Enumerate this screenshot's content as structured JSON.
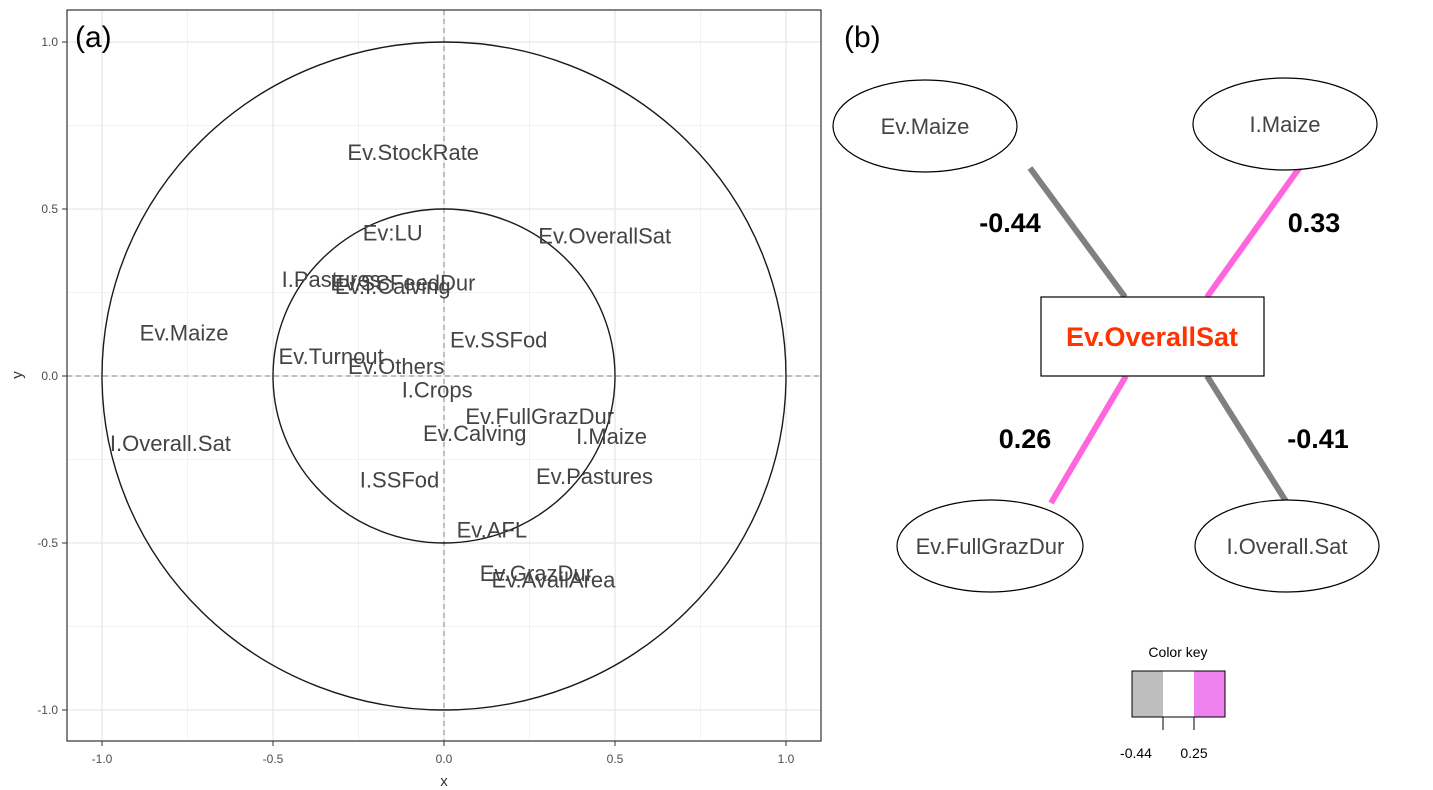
{
  "panel_a": {
    "label": "(a)"
  },
  "panel_b": {
    "label": "(b)"
  },
  "chart_data": [
    {
      "type": "scatter",
      "title": "",
      "xlabel": "x",
      "ylabel": "y",
      "xlim": [
        -1.1,
        1.1
      ],
      "ylim": [
        -1.1,
        1.1
      ],
      "xticks": [
        -1.0,
        -0.5,
        0.0,
        0.5,
        1.0
      ],
      "yticks": [
        -1.0,
        -0.5,
        0.0,
        0.5,
        1.0
      ],
      "xtick_labels": [
        "-1.0",
        "-0.5",
        "0.0",
        "0.5",
        "1.0"
      ],
      "ytick_labels": [
        "-1.0",
        "-0.5",
        "0.0",
        "0.5",
        "1.0"
      ],
      "grid": true,
      "reference_lines": {
        "x": 0,
        "y": 0,
        "style": "dashed"
      },
      "circles": [
        {
          "radius": 1.0
        },
        {
          "radius": 0.5
        }
      ],
      "highlight_color": "#ff3300",
      "text_color": "#444444",
      "points": [
        {
          "label": "Ev.StockRate",
          "x": -0.09,
          "y": 0.67
        },
        {
          "label": "Ev:LU",
          "x": -0.15,
          "y": 0.43
        },
        {
          "label": "Ev.OverallSat",
          "x": 0.47,
          "y": 0.42,
          "highlight": true
        },
        {
          "label": "I.Pastures",
          "x": -0.33,
          "y": 0.29
        },
        {
          "label": "Ev.SSFeedDur",
          "x": -0.12,
          "y": 0.28
        },
        {
          "label": "Ev.I.Calving",
          "x": -0.15,
          "y": 0.27
        },
        {
          "label": "Ev.Maize",
          "x": -0.76,
          "y": 0.13
        },
        {
          "label": "Ev.SSFod",
          "x": 0.16,
          "y": 0.11
        },
        {
          "label": "Ev.Turnout",
          "x": -0.33,
          "y": 0.06
        },
        {
          "label": "Ev.Others",
          "x": -0.14,
          "y": 0.03
        },
        {
          "label": "I.Crops",
          "x": -0.02,
          "y": -0.04
        },
        {
          "label": "Ev.FullGrazDur",
          "x": 0.28,
          "y": -0.12
        },
        {
          "label": "I.Maize",
          "x": 0.49,
          "y": -0.18
        },
        {
          "label": "Ev.Calving",
          "x": 0.09,
          "y": -0.17
        },
        {
          "label": "I.Overall.Sat",
          "x": -0.8,
          "y": -0.2
        },
        {
          "label": "Ev.Pastures",
          "x": 0.44,
          "y": -0.3
        },
        {
          "label": "I.SSFod",
          "x": -0.13,
          "y": -0.31
        },
        {
          "label": "Ev.AFL",
          "x": 0.14,
          "y": -0.46
        },
        {
          "label": "Ev.GrazDur",
          "x": 0.27,
          "y": -0.59
        },
        {
          "label": "Ev.AvailArea",
          "x": 0.32,
          "y": -0.61
        }
      ]
    },
    {
      "type": "network",
      "center": {
        "label": "Ev.OverallSat",
        "color": "#ff3300"
      },
      "edges": [
        {
          "node": "Ev.Maize",
          "weight": "-0.44",
          "value": -0.44,
          "position": "top-left",
          "color": "#808080"
        },
        {
          "node": "I.Maize",
          "weight": "0.33",
          "value": 0.33,
          "position": "top-right",
          "color": "#ff66dd"
        },
        {
          "node": "Ev.FullGrazDur",
          "weight": "0.26",
          "value": 0.26,
          "position": "bottom-left",
          "color": "#ff66dd"
        },
        {
          "node": "I.Overall.Sat",
          "weight": "-0.41",
          "value": -0.41,
          "position": "bottom-right",
          "color": "#808080"
        }
      ],
      "color_key": {
        "title": "Color key",
        "tick_labels": [
          "-0.44",
          "0.25"
        ],
        "colors": [
          "#bebebe",
          "#ffffff",
          "#ee82ee"
        ]
      }
    }
  ]
}
